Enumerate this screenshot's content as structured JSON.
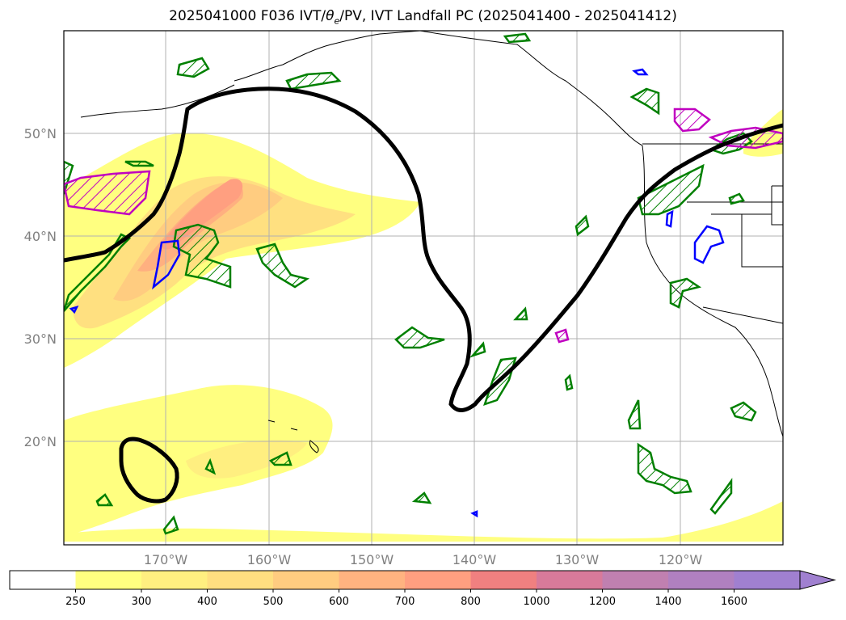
{
  "title": {
    "prefix": "2025041000 F036 IVT/",
    "theta": "θ",
    "sub": "e",
    "suffix": "/PV, IVT Landfall PC (2025041400 - 2025041412)"
  },
  "lat_labels": [
    "50°N",
    "40°N",
    "30°N",
    "20°N"
  ],
  "lon_labels": [
    "170°W",
    "160°W",
    "150°W",
    "140°W",
    "130°W",
    "120°W"
  ],
  "colorbar": {
    "ticks": [
      "250",
      "300",
      "400",
      "500",
      "600",
      "700",
      "800",
      "1000",
      "1200",
      "1400",
      "1600"
    ],
    "colors": [
      "#ffffff",
      "#ffff80",
      "#ffef80",
      "#ffdf80",
      "#ffcc80",
      "#ffb380",
      "#ff9f80",
      "#f08080",
      "#d87a9a",
      "#c080b0",
      "#b080c0",
      "#a080d0"
    ]
  },
  "colors": {
    "pc_contour": "#000000",
    "theta_e": "#008000",
    "pv_blue": "#0000ff",
    "pv_magenta": "#c000c0",
    "grid": "#b0b0b0",
    "coast": "#000000"
  }
}
